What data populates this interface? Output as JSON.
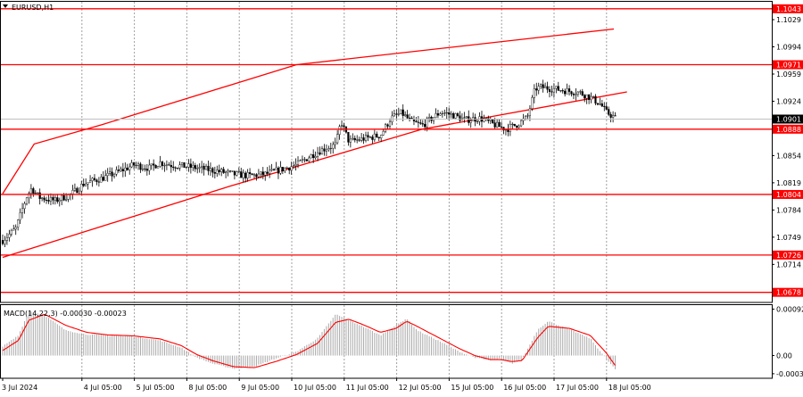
{
  "symbol_label": "EURUSD,H1",
  "macd_label": "MACD(14,22,3) -0.00030 -0.00023",
  "colors": {
    "level_line": "#ff0000",
    "level_label_bg": "#ff0000",
    "level_label_text": "#ffffff",
    "current_label_bg": "#000000",
    "current_label_text": "#ffffff",
    "candle_up_body": "#ffffff",
    "candle_down_body": "#000000",
    "candle_outline": "#000000",
    "grid": "#a0a0a0",
    "macd_hist": "#a9a9a9",
    "macd_signal": "#ff0000"
  },
  "chart_data": [
    {
      "type": "candlestick",
      "title": "EURUSD,H1",
      "y_ticks": [
        "1.1029",
        "1.0994",
        "1.0959",
        "1.0924",
        "1.0854",
        "1.0819",
        "1.0784",
        "1.0749",
        "1.0714"
      ],
      "ylim": [
        1.0665,
        1.1052
      ],
      "x_tick_labels": [
        "3 Jul 2024",
        "4 Jul 05:00",
        "5 Jul 05:00",
        "8 Jul 05:00",
        "9 Jul 05:00",
        "10 Jul 05:00",
        "11 Jul 05:00",
        "12 Jul 05:00",
        "15 Jul 05:00",
        "16 Jul 05:00",
        "17 Jul 05:00",
        "18 Jul 05:00"
      ],
      "grid": true,
      "horizontal_levels": [
        "1.1043",
        "1.0971",
        "1.0888",
        "1.0804",
        "1.0726",
        "1.0678"
      ],
      "current_price": "1.0901",
      "channel": {
        "upper": [
          [
            0.0,
            1.0805
          ],
          [
            0.6,
            1.0869
          ],
          [
            1.9,
            1.0894
          ],
          [
            5.6,
            1.0971
          ],
          [
            11.65,
            1.1017
          ]
        ],
        "lower": [
          [
            0.0,
            1.0723
          ],
          [
            4.3,
            1.0814
          ],
          [
            8.0,
            1.0888
          ],
          [
            11.9,
            1.0936
          ]
        ]
      },
      "close_path": [
        [
          0.0,
          1.0745
        ],
        [
          0.25,
          1.076
        ],
        [
          0.45,
          1.08
        ],
        [
          0.55,
          1.0812
        ],
        [
          0.7,
          1.08
        ],
        [
          1.0,
          1.0796
        ],
        [
          1.3,
          1.0804
        ],
        [
          1.55,
          1.0818
        ],
        [
          1.9,
          1.0825
        ],
        [
          2.2,
          1.0833
        ],
        [
          2.5,
          1.0842
        ],
        [
          2.8,
          1.0838
        ],
        [
          3.0,
          1.0845
        ],
        [
          3.2,
          1.0842
        ],
        [
          3.5,
          1.084
        ],
        [
          3.8,
          1.0837
        ],
        [
          4.1,
          1.0834
        ],
        [
          4.4,
          1.083
        ],
        [
          4.7,
          1.0828
        ],
        [
          5.0,
          1.083
        ],
        [
          5.3,
          1.0836
        ],
        [
          5.6,
          1.0842
        ],
        [
          5.9,
          1.0855
        ],
        [
          6.1,
          1.0862
        ],
        [
          6.35,
          1.0868
        ],
        [
          6.45,
          1.0898
        ],
        [
          6.6,
          1.0872
        ],
        [
          6.9,
          1.0876
        ],
        [
          7.2,
          1.088
        ],
        [
          7.4,
          1.0902
        ],
        [
          7.6,
          1.0909
        ],
        [
          7.8,
          1.0897
        ],
        [
          8.0,
          1.0893
        ],
        [
          8.2,
          1.0903
        ],
        [
          8.35,
          1.091
        ],
        [
          8.6,
          1.0906
        ],
        [
          8.8,
          1.09
        ],
        [
          9.1,
          1.0902
        ],
        [
          9.4,
          1.0893
        ],
        [
          9.6,
          1.0888
        ],
        [
          9.8,
          1.0894
        ],
        [
          10.0,
          1.0903
        ],
        [
          10.15,
          1.094
        ],
        [
          10.25,
          1.0942
        ],
        [
          10.5,
          1.094
        ],
        [
          10.8,
          1.0937
        ],
        [
          11.0,
          1.0935
        ],
        [
          11.2,
          1.0929
        ],
        [
          11.4,
          1.092
        ],
        [
          11.5,
          1.091
        ],
        [
          11.6,
          1.0906
        ],
        [
          11.7,
          1.0901
        ]
      ]
    },
    {
      "type": "histogram",
      "title": "MACD(14,22,3) -0.00030 -0.00023",
      "y_ticks": [
        "0.00092",
        "0.00",
        "-0.00036"
      ],
      "ylim": [
        -0.00045,
        0.001
      ],
      "histogram_path": [
        [
          0.0,
          0.00018
        ],
        [
          0.3,
          0.0004
        ],
        [
          0.5,
          0.00088
        ],
        [
          0.8,
          0.0008
        ],
        [
          1.2,
          0.0005
        ],
        [
          1.6,
          0.00042
        ],
        [
          2.0,
          0.0004
        ],
        [
          2.5,
          0.00038
        ],
        [
          3.0,
          0.0003
        ],
        [
          3.4,
          0.00016
        ],
        [
          3.7,
          -4e-05
        ],
        [
          4.0,
          -0.00016
        ],
        [
          4.4,
          -0.00026
        ],
        [
          4.8,
          -0.00022
        ],
        [
          5.2,
          -6e-05
        ],
        [
          5.6,
          8e-05
        ],
        [
          6.0,
          0.00034
        ],
        [
          6.35,
          0.00082
        ],
        [
          6.6,
          0.0007
        ],
        [
          6.9,
          0.00056
        ],
        [
          7.2,
          0.0004
        ],
        [
          7.5,
          0.0006
        ],
        [
          7.7,
          0.00074
        ],
        [
          7.9,
          0.0005
        ],
        [
          8.3,
          0.0003
        ],
        [
          8.7,
          8e-05
        ],
        [
          9.0,
          -4e-05
        ],
        [
          9.3,
          -0.0001
        ],
        [
          9.5,
          -6e-05
        ],
        [
          9.7,
          -0.00016
        ],
        [
          9.9,
          -8e-05
        ],
        [
          10.2,
          0.00052
        ],
        [
          10.4,
          0.00068
        ],
        [
          10.8,
          0.00052
        ],
        [
          11.2,
          0.00034
        ],
        [
          11.5,
          -6e-05
        ],
        [
          11.7,
          -0.0003
        ]
      ],
      "signal_path": [
        [
          0.0,
          0.0001
        ],
        [
          0.3,
          0.0003
        ],
        [
          0.5,
          0.0007
        ],
        [
          0.8,
          0.00082
        ],
        [
          1.2,
          0.0006
        ],
        [
          1.6,
          0.00046
        ],
        [
          2.0,
          0.00041
        ],
        [
          2.5,
          0.00039
        ],
        [
          3.0,
          0.00033
        ],
        [
          3.4,
          0.0002
        ],
        [
          3.7,
          2e-05
        ],
        [
          4.0,
          -0.0001
        ],
        [
          4.4,
          -0.00022
        ],
        [
          4.8,
          -0.00024
        ],
        [
          5.2,
          -0.00012
        ],
        [
          5.6,
          2e-05
        ],
        [
          6.0,
          0.00024
        ],
        [
          6.35,
          0.00066
        ],
        [
          6.6,
          0.00072
        ],
        [
          6.9,
          0.0006
        ],
        [
          7.2,
          0.00046
        ],
        [
          7.5,
          0.00054
        ],
        [
          7.7,
          0.00068
        ],
        [
          7.9,
          0.00058
        ],
        [
          8.3,
          0.00036
        ],
        [
          8.7,
          0.00014
        ],
        [
          9.0,
          0.0
        ],
        [
          9.3,
          -8e-05
        ],
        [
          9.5,
          -8e-05
        ],
        [
          9.7,
          -0.00012
        ],
        [
          9.9,
          -0.0001
        ],
        [
          10.2,
          0.00036
        ],
        [
          10.4,
          0.00058
        ],
        [
          10.8,
          0.00054
        ],
        [
          11.2,
          0.0004
        ],
        [
          11.5,
          6e-05
        ],
        [
          11.7,
          -0.00023
        ]
      ]
    }
  ]
}
